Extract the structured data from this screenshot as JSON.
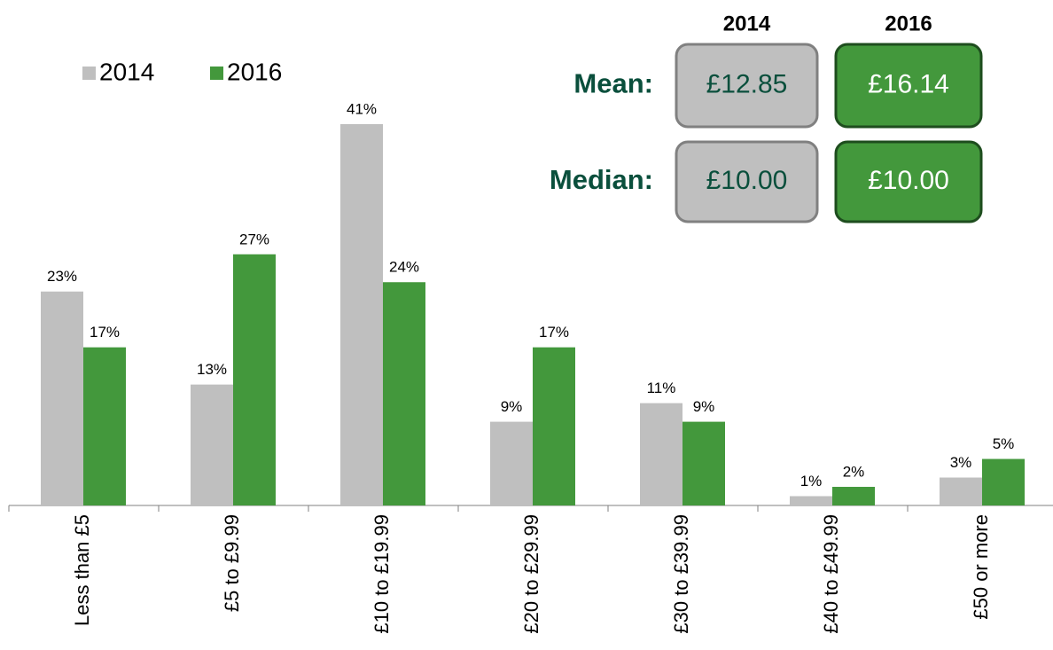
{
  "chart_data": {
    "type": "bar",
    "categories": [
      "Less than £5",
      "£5 to £9.99",
      "£10 to £19.99",
      "£20 to £29.99",
      "£30 to £39.99",
      "£40 to £49.99",
      "£50 or more"
    ],
    "series": [
      {
        "name": "2014",
        "color": "#bfbfbf",
        "values": [
          23,
          13,
          41,
          9,
          11,
          1,
          3
        ],
        "value_labels": [
          "23%",
          "13%",
          "41%",
          "9%",
          "11%",
          "1%",
          "3%"
        ]
      },
      {
        "name": "2016",
        "color": "#43983c",
        "values": [
          17,
          27,
          24,
          17,
          9,
          2,
          5
        ],
        "value_labels": [
          "17%",
          "27%",
          "24%",
          "17%",
          "9%",
          "2%",
          "5%"
        ]
      }
    ],
    "legend": "top-left",
    "summary": {
      "columns": [
        "2014",
        "2016"
      ],
      "rows": [
        {
          "label": "Mean:",
          "values": [
            12.85,
            16.14
          ],
          "value_labels": [
            "£12.85",
            "£16.14"
          ]
        },
        {
          "label": "Median:",
          "values": [
            10.0,
            10.0
          ],
          "value_labels": [
            "£10.00",
            "£10.00"
          ]
        }
      ]
    }
  }
}
